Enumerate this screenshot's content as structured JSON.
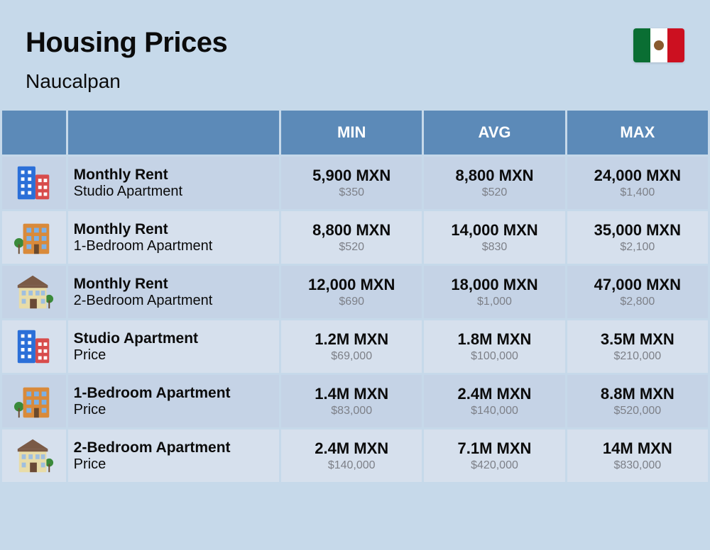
{
  "header": {
    "title": "Housing Prices",
    "subtitle": "Naucalpan",
    "flag_colors": {
      "green": "#0a6e33",
      "white": "#ffffff",
      "red": "#cc1020",
      "emblem": "#8a5a2e"
    }
  },
  "table": {
    "header_bg": "#5c8ab8",
    "header_fg": "#ffffff",
    "row_bg_a": "#c5d3e6",
    "row_bg_b": "#d6e0ed",
    "columns": [
      "",
      "",
      "MIN",
      "AVG",
      "MAX"
    ],
    "rows": [
      {
        "icon": "studio",
        "title": "Monthly Rent",
        "subtitle": "Studio Apartment",
        "min": {
          "main": "5,900 MXN",
          "sub": "$350"
        },
        "avg": {
          "main": "8,800 MXN",
          "sub": "$520"
        },
        "max": {
          "main": "24,000 MXN",
          "sub": "$1,400"
        }
      },
      {
        "icon": "onebr",
        "title": "Monthly Rent",
        "subtitle": "1-Bedroom Apartment",
        "min": {
          "main": "8,800 MXN",
          "sub": "$520"
        },
        "avg": {
          "main": "14,000 MXN",
          "sub": "$830"
        },
        "max": {
          "main": "35,000 MXN",
          "sub": "$2,100"
        }
      },
      {
        "icon": "twobr",
        "title": "Monthly Rent",
        "subtitle": "2-Bedroom Apartment",
        "min": {
          "main": "12,000 MXN",
          "sub": "$690"
        },
        "avg": {
          "main": "18,000 MXN",
          "sub": "$1,000"
        },
        "max": {
          "main": "47,000 MXN",
          "sub": "$2,800"
        }
      },
      {
        "icon": "studio",
        "title": "Studio Apartment",
        "subtitle": "Price",
        "min": {
          "main": "1.2M MXN",
          "sub": "$69,000"
        },
        "avg": {
          "main": "1.8M MXN",
          "sub": "$100,000"
        },
        "max": {
          "main": "3.5M MXN",
          "sub": "$210,000"
        }
      },
      {
        "icon": "onebr",
        "title": "1-Bedroom Apartment",
        "subtitle": "Price",
        "min": {
          "main": "1.4M MXN",
          "sub": "$83,000"
        },
        "avg": {
          "main": "2.4M MXN",
          "sub": "$140,000"
        },
        "max": {
          "main": "8.8M MXN",
          "sub": "$520,000"
        }
      },
      {
        "icon": "twobr",
        "title": "2-Bedroom Apartment",
        "subtitle": "Price",
        "min": {
          "main": "2.4M MXN",
          "sub": "$140,000"
        },
        "avg": {
          "main": "7.1M MXN",
          "sub": "$420,000"
        },
        "max": {
          "main": "14M MXN",
          "sub": "$830,000"
        }
      }
    ]
  },
  "icons": {
    "studio": {
      "left_bg": "#2b6fd8",
      "right_bg": "#d84c4c",
      "window": "#ffffff"
    },
    "onebr": {
      "bg": "#d98a3a",
      "window": "#7bb0e6",
      "tree": "#3a8a3a"
    },
    "twobr": {
      "bg": "#e8dca8",
      "roof": "#7a5a46",
      "window": "#9fbfe0",
      "door": "#6a4a36",
      "tree": "#3a8a3a"
    }
  },
  "colors": {
    "page_bg": "#c6d9ea",
    "text_main": "#0b0b0b",
    "text_sub": "#7d8088"
  },
  "fontsize": {
    "title": 40,
    "subtitle": 28,
    "th": 22,
    "row_title": 21,
    "row_sub": 20,
    "val_main": 22,
    "val_sub": 16
  }
}
